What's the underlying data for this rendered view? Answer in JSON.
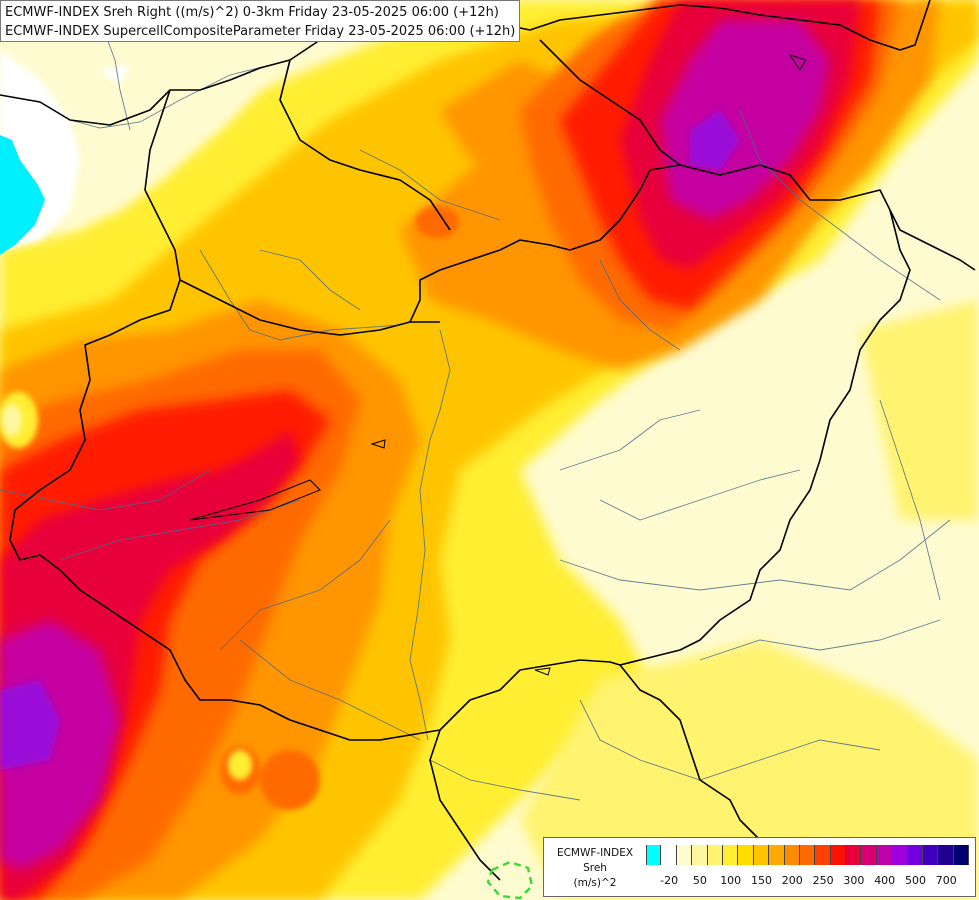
{
  "title": {
    "line1": "ECMWF-INDEX Sreh Right ((m/s)^2) 0-3km Friday 23-05-2025 06:00 (+12h)",
    "line2": "ECMWF-INDEX SupercellCompositeParameter Friday 23-05-2025 06:00 (+12h)"
  },
  "legend": {
    "name_line1": "ECMWF-INDEX",
    "name_line2": "Sreh",
    "unit": "(m/s)^2",
    "colors": [
      "#00ffff",
      "#ffffff",
      "#fffbd0",
      "#fff7a0",
      "#fff370",
      "#ffee33",
      "#ffdd00",
      "#ffc400",
      "#ffaa00",
      "#ff8c00",
      "#ff6a00",
      "#ff4000",
      "#ff1000",
      "#e8003a",
      "#d80070",
      "#c000a8",
      "#a000e0",
      "#7000e0",
      "#4000c0",
      "#200090",
      "#000070"
    ],
    "tick_labels": [
      {
        "label": "-20",
        "index": 1
      },
      {
        "label": "50",
        "index": 3
      },
      {
        "label": "100",
        "index": 5
      },
      {
        "label": "150",
        "index": 7
      },
      {
        "label": "200",
        "index": 9
      },
      {
        "label": "250",
        "index": 11
      },
      {
        "label": "300",
        "index": 13
      },
      {
        "label": "400",
        "index": 15
      },
      {
        "label": "500",
        "index": 17
      },
      {
        "label": "700",
        "index": 19
      }
    ]
  },
  "colors": {
    "low": "#fffbd0",
    "yellow": "#ffee33",
    "orange": "#ffaa00",
    "red": "#ff2a00",
    "crimson": "#e8003a",
    "magenta": "#c400a0",
    "violet": "#a000e0",
    "cyan": "#00ffff",
    "border": "#000000",
    "river": "#4a6a8a",
    "scp_contour": "#33dd33"
  }
}
